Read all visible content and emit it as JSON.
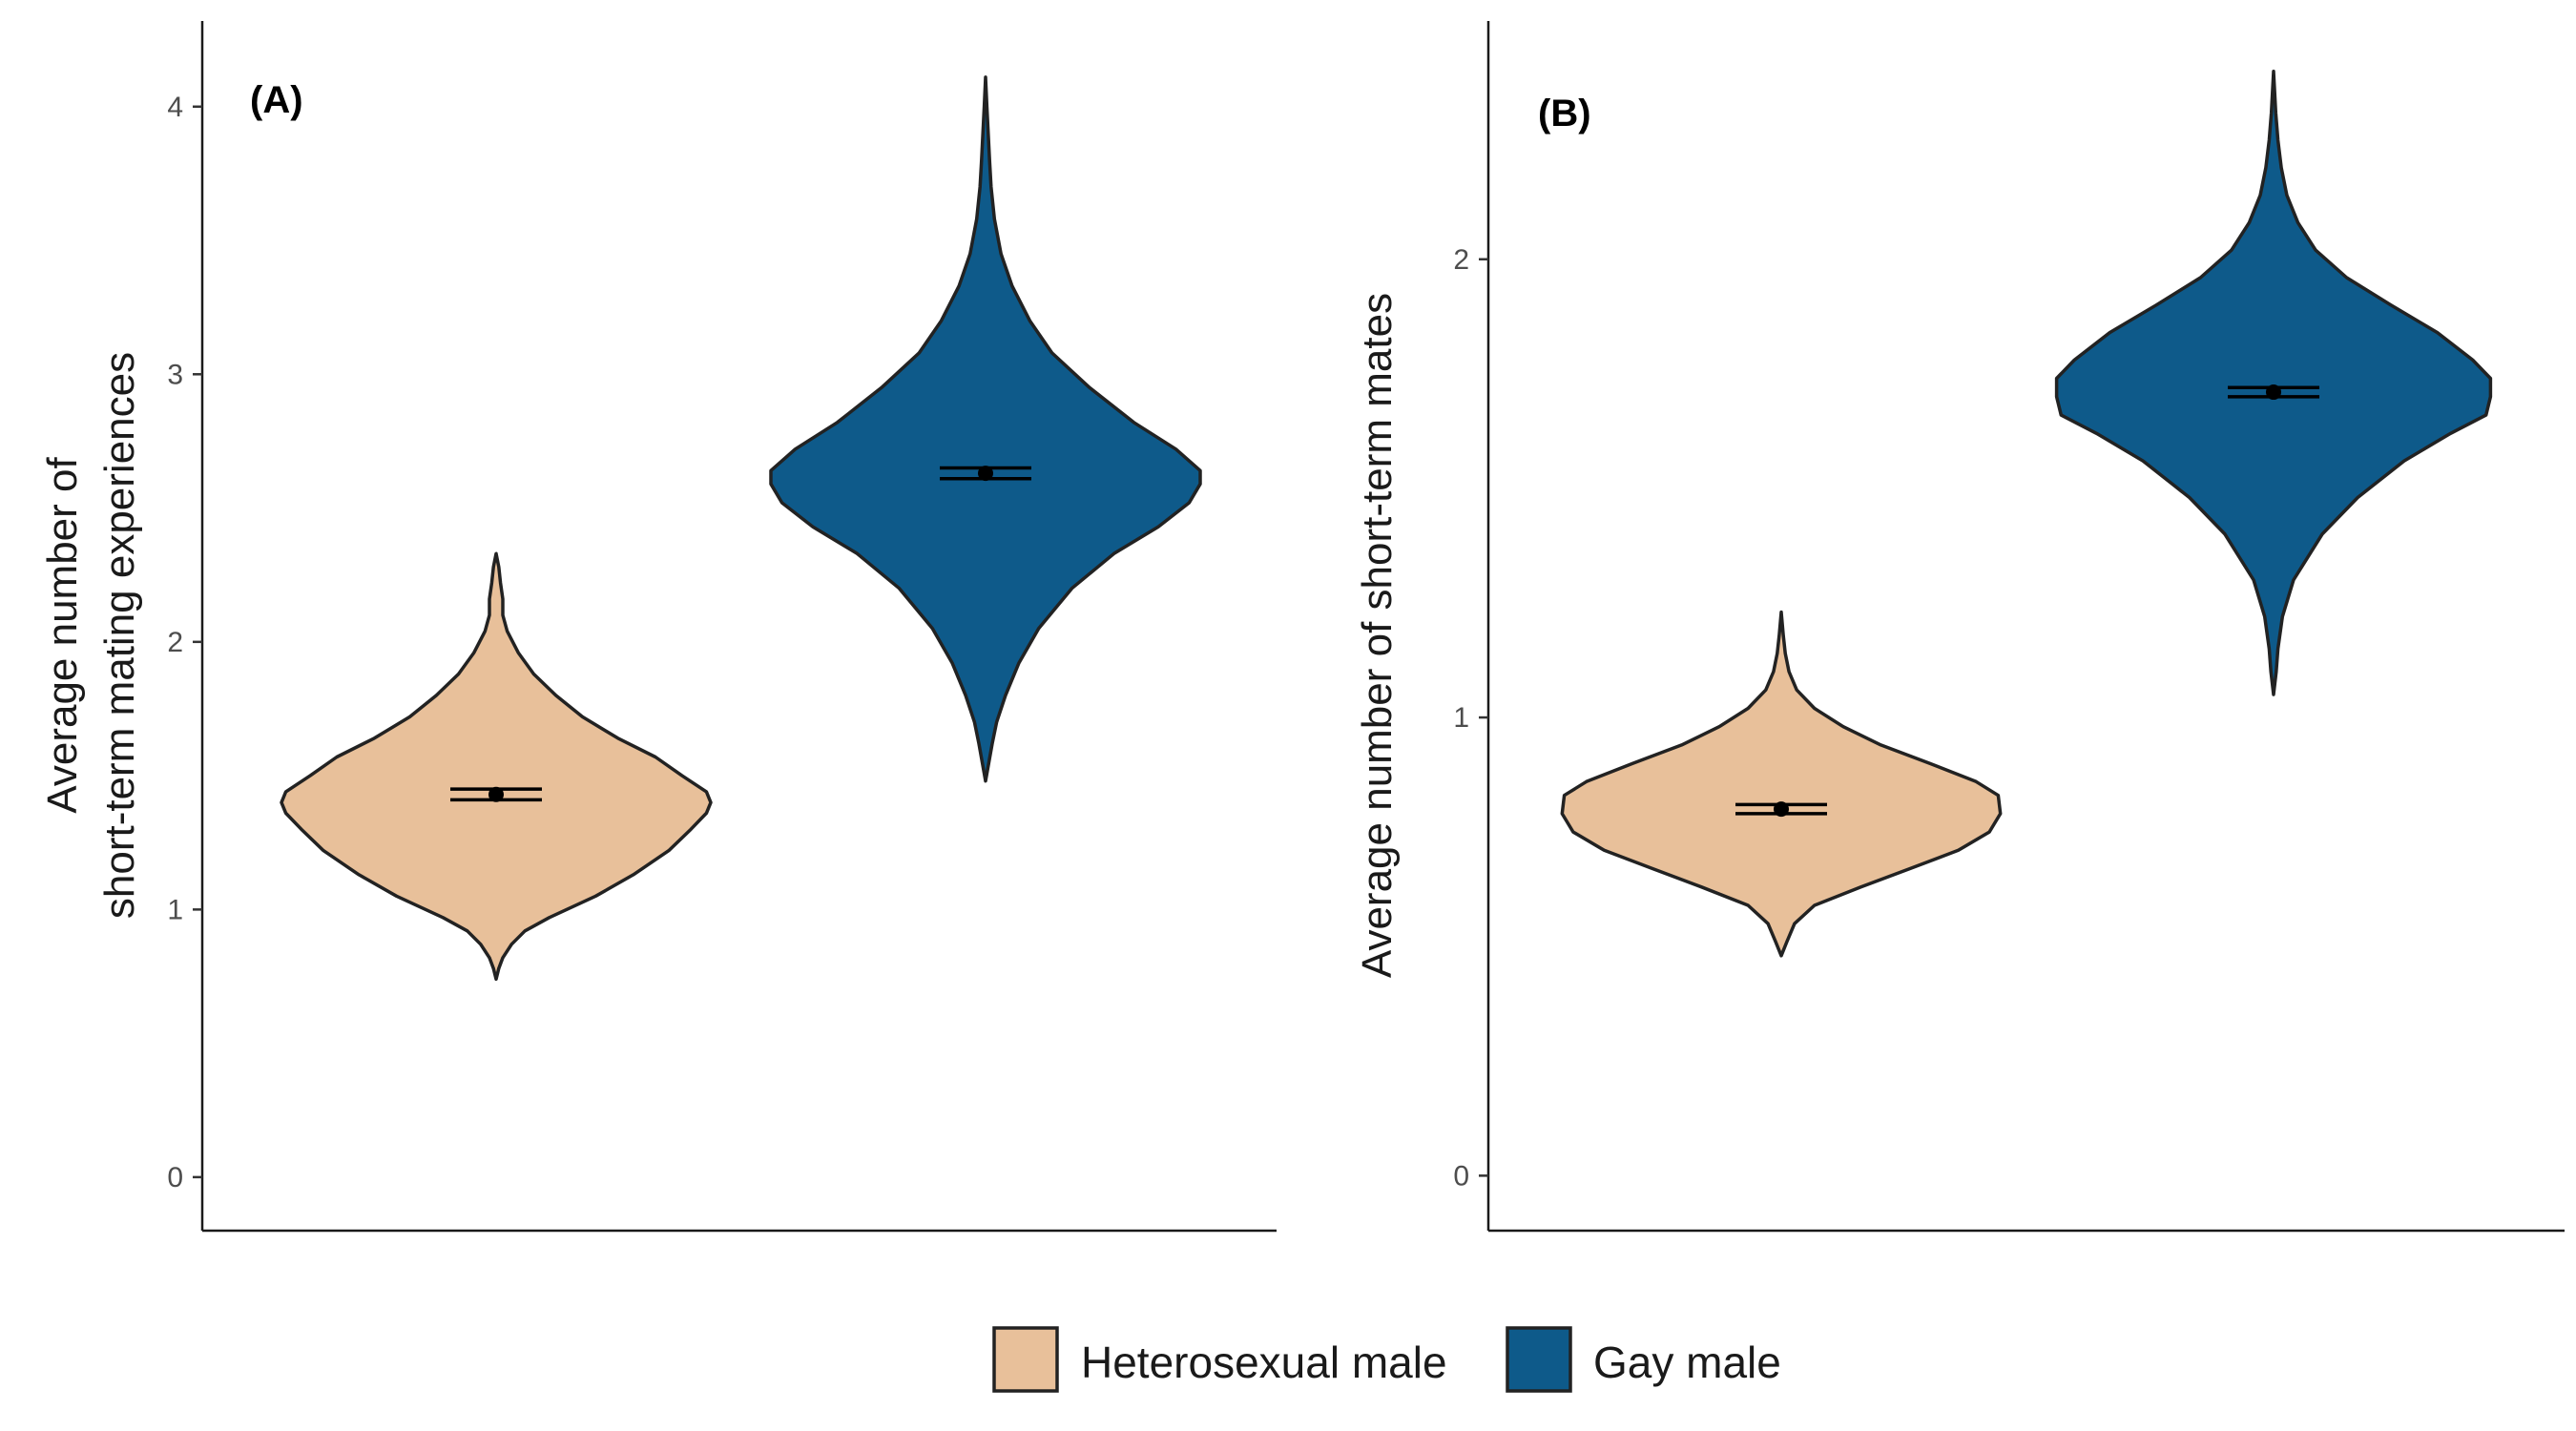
{
  "chart_data": [
    {
      "type": "violin",
      "panel_label": "(A)",
      "ylabel_lines": [
        "Average number of",
        "short-term mating experiences"
      ],
      "ylim": [
        -0.2,
        4.32
      ],
      "yticks": [
        0,
        1,
        2,
        3,
        4
      ],
      "ytick_labels": [
        "0",
        "1",
        "2",
        "3",
        "4"
      ],
      "grid": false,
      "series": [
        {
          "name": "Heterosexual male",
          "color": "#E8C09A",
          "mean": 1.43,
          "ci": [
            1.41,
            1.45
          ],
          "min": 0.74,
          "max": 2.33,
          "profile": [
            [
              0.74,
              0.0
            ],
            [
              0.78,
              0.012
            ],
            [
              0.82,
              0.03
            ],
            [
              0.87,
              0.07
            ],
            [
              0.92,
              0.13
            ],
            [
              0.97,
              0.24
            ],
            [
              1.05,
              0.45
            ],
            [
              1.13,
              0.62
            ],
            [
              1.22,
              0.78
            ],
            [
              1.3,
              0.88
            ],
            [
              1.36,
              0.95
            ],
            [
              1.4,
              0.97
            ],
            [
              1.44,
              0.95
            ],
            [
              1.5,
              0.84
            ],
            [
              1.57,
              0.72
            ],
            [
              1.64,
              0.55
            ],
            [
              1.72,
              0.39
            ],
            [
              1.8,
              0.27
            ],
            [
              1.88,
              0.17
            ],
            [
              1.96,
              0.1
            ],
            [
              2.04,
              0.05
            ],
            [
              2.1,
              0.03
            ],
            [
              2.16,
              0.03
            ],
            [
              2.22,
              0.02
            ],
            [
              2.28,
              0.012
            ],
            [
              2.33,
              0.0
            ]
          ]
        },
        {
          "name": "Gay male",
          "color": "#0E5A8A",
          "mean": 2.63,
          "ci": [
            2.61,
            2.65
          ],
          "min": 1.48,
          "max": 4.11,
          "profile": [
            [
              1.48,
              0.0
            ],
            [
              1.55,
              0.015
            ],
            [
              1.62,
              0.03
            ],
            [
              1.7,
              0.05
            ],
            [
              1.8,
              0.09
            ],
            [
              1.92,
              0.15
            ],
            [
              2.05,
              0.24
            ],
            [
              2.2,
              0.39
            ],
            [
              2.33,
              0.58
            ],
            [
              2.43,
              0.78
            ],
            [
              2.52,
              0.92
            ],
            [
              2.59,
              0.97
            ],
            [
              2.64,
              0.97
            ],
            [
              2.72,
              0.86
            ],
            [
              2.82,
              0.67
            ],
            [
              2.95,
              0.47
            ],
            [
              3.08,
              0.3
            ],
            [
              3.2,
              0.2
            ],
            [
              3.33,
              0.12
            ],
            [
              3.45,
              0.07
            ],
            [
              3.58,
              0.04
            ],
            [
              3.7,
              0.025
            ],
            [
              3.8,
              0.018
            ],
            [
              3.9,
              0.012
            ],
            [
              4.0,
              0.006
            ],
            [
              4.11,
              0.0
            ]
          ]
        }
      ]
    },
    {
      "type": "violin",
      "panel_label": "(B)",
      "ylabel_lines": [
        "Average number of short-term mates"
      ],
      "ylim": [
        -0.12,
        2.52
      ],
      "yticks": [
        0,
        1,
        2
      ],
      "ytick_labels": [
        "0",
        "1",
        "2"
      ],
      "grid": false,
      "series": [
        {
          "name": "Heterosexual male",
          "color": "#E8C09A",
          "mean": 0.8,
          "ci": [
            0.79,
            0.81
          ],
          "min": 0.48,
          "max": 1.23,
          "profile": [
            [
              0.48,
              0.0
            ],
            [
              0.51,
              0.025
            ],
            [
              0.55,
              0.06
            ],
            [
              0.59,
              0.15
            ],
            [
              0.63,
              0.36
            ],
            [
              0.67,
              0.58
            ],
            [
              0.71,
              0.8
            ],
            [
              0.75,
              0.94
            ],
            [
              0.79,
              0.99
            ],
            [
              0.83,
              0.98
            ],
            [
              0.86,
              0.88
            ],
            [
              0.9,
              0.67
            ],
            [
              0.94,
              0.45
            ],
            [
              0.98,
              0.28
            ],
            [
              1.02,
              0.15
            ],
            [
              1.06,
              0.07
            ],
            [
              1.1,
              0.035
            ],
            [
              1.14,
              0.018
            ],
            [
              1.18,
              0.009
            ],
            [
              1.23,
              0.0
            ]
          ]
        },
        {
          "name": "Gay male",
          "color": "#0E5A8A",
          "mean": 1.71,
          "ci": [
            1.7,
            1.72
          ],
          "min": 1.05,
          "max": 2.41,
          "profile": [
            [
              1.05,
              0.0
            ],
            [
              1.1,
              0.012
            ],
            [
              1.15,
              0.02
            ],
            [
              1.22,
              0.04
            ],
            [
              1.3,
              0.09
            ],
            [
              1.4,
              0.22
            ],
            [
              1.48,
              0.38
            ],
            [
              1.56,
              0.59
            ],
            [
              1.62,
              0.8
            ],
            [
              1.66,
              0.96
            ],
            [
              1.7,
              0.98
            ],
            [
              1.74,
              0.98
            ],
            [
              1.78,
              0.9
            ],
            [
              1.84,
              0.74
            ],
            [
              1.9,
              0.53
            ],
            [
              1.96,
              0.33
            ],
            [
              2.02,
              0.19
            ],
            [
              2.08,
              0.11
            ],
            [
              2.14,
              0.06
            ],
            [
              2.2,
              0.035
            ],
            [
              2.26,
              0.02
            ],
            [
              2.32,
              0.01
            ],
            [
              2.41,
              0.0
            ]
          ]
        }
      ]
    }
  ],
  "legend": {
    "position": "bottom",
    "items": [
      {
        "label": "Heterosexual male",
        "color": "#E8C09A"
      },
      {
        "label": "Gay male",
        "color": "#0E5A8A"
      }
    ]
  }
}
